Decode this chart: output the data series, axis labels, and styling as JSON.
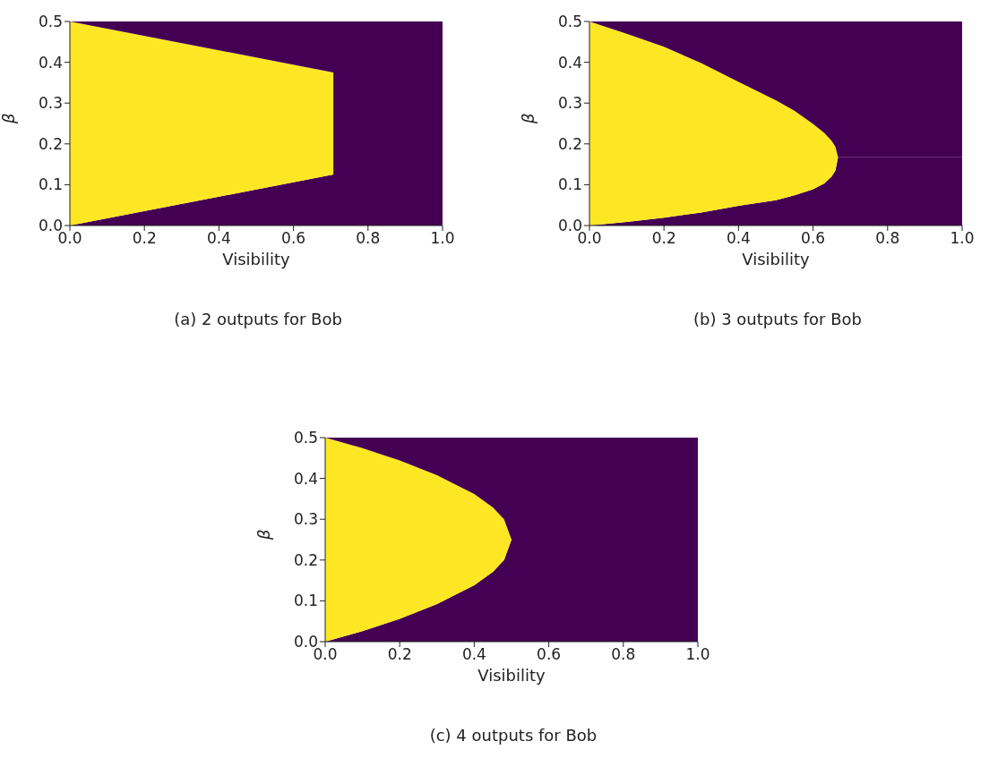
{
  "chart_data": [
    {
      "type": "area",
      "stacked": true,
      "title": "(a) 2 outputs for Bob",
      "xlabel": "Visibility",
      "ylabel": "β",
      "xlim": [
        0,
        1
      ],
      "ylim": [
        0,
        0.5
      ],
      "xticks": [
        {
          "value": 0,
          "label": "0.0"
        },
        {
          "value": 0.2,
          "label": "0.2"
        },
        {
          "value": 0.4,
          "label": "0.4"
        },
        {
          "value": 0.6,
          "label": "0.6"
        },
        {
          "value": 0.8,
          "label": "0.8"
        },
        {
          "value": 1,
          "label": "1.0"
        }
      ],
      "yticks": [
        {
          "value": 0,
          "label": "0.0"
        },
        {
          "value": 0.1,
          "label": "0.1"
        },
        {
          "value": 0.2,
          "label": "0.2"
        },
        {
          "value": 0.3,
          "label": "0.3"
        },
        {
          "value": 0.4,
          "label": "0.4"
        },
        {
          "value": 0.5,
          "label": "0.5"
        }
      ],
      "grid": false,
      "series": [
        {
          "color": "#440154",
          "x": [
            0,
            0.707,
            0.707,
            1
          ],
          "values": [
            0,
            0.125,
            0.125,
            0.125
          ]
        },
        {
          "color": "#fde725",
          "x": [
            0,
            0.707,
            0.707,
            1
          ],
          "values": [
            0.5,
            0.25,
            0,
            0
          ]
        },
        {
          "color": "#440154",
          "x": [
            0,
            0.707,
            0.707,
            1
          ],
          "values": [
            0,
            0.125,
            0.375,
            0.375
          ]
        }
      ]
    },
    {
      "type": "area",
      "stacked": true,
      "title": "(b) 3 outputs for Bob",
      "xlabel": "Visibility",
      "ylabel": "β",
      "xlim": [
        0,
        1
      ],
      "ylim": [
        0,
        0.5
      ],
      "xticks": [
        {
          "value": 0,
          "label": "0.0"
        },
        {
          "value": 0.2,
          "label": "0.2"
        },
        {
          "value": 0.4,
          "label": "0.4"
        },
        {
          "value": 0.6,
          "label": "0.6"
        },
        {
          "value": 0.8,
          "label": "0.8"
        },
        {
          "value": 1,
          "label": "1.0"
        }
      ],
      "yticks": [
        {
          "value": 0,
          "label": "0.0"
        },
        {
          "value": 0.1,
          "label": "0.1"
        },
        {
          "value": 0.2,
          "label": "0.2"
        },
        {
          "value": 0.3,
          "label": "0.3"
        },
        {
          "value": 0.4,
          "label": "0.4"
        },
        {
          "value": 0.5,
          "label": "0.5"
        }
      ],
      "grid": false,
      "series": [
        {
          "color": "#440154",
          "x": [
            0,
            0.1,
            0.2,
            0.3,
            0.4,
            0.5,
            0.55,
            0.6,
            0.63,
            0.65,
            0.66,
            0.667,
            1
          ],
          "values": [
            0,
            0.009,
            0.019,
            0.032,
            0.048,
            0.062,
            0.074,
            0.089,
            0.103,
            0.12,
            0.135,
            0.167,
            0.167
          ]
        },
        {
          "color": "#fde725",
          "x": [
            0,
            0.1,
            0.2,
            0.3,
            0.4,
            0.5,
            0.55,
            0.6,
            0.63,
            0.65,
            0.66,
            0.667,
            1
          ],
          "values": [
            0.5,
            0.461,
            0.419,
            0.366,
            0.304,
            0.245,
            0.207,
            0.16,
            0.124,
            0.087,
            0.058,
            0,
            0
          ]
        },
        {
          "color": "#440154",
          "x": [
            0,
            0.1,
            0.2,
            0.3,
            0.4,
            0.5,
            0.55,
            0.6,
            0.63,
            0.65,
            0.66,
            0.667,
            1
          ],
          "values": [
            0,
            0.03,
            0.062,
            0.102,
            0.148,
            0.193,
            0.219,
            0.251,
            0.273,
            0.293,
            0.307,
            0.333,
            0.333
          ]
        }
      ]
    },
    {
      "type": "area",
      "stacked": true,
      "title": "(c) 4 outputs for Bob",
      "xlabel": "Visibility",
      "ylabel": "β",
      "xlim": [
        0,
        1
      ],
      "ylim": [
        0,
        0.5
      ],
      "xticks": [
        {
          "value": 0,
          "label": "0.0"
        },
        {
          "value": 0.2,
          "label": "0.2"
        },
        {
          "value": 0.4,
          "label": "0.4"
        },
        {
          "value": 0.6,
          "label": "0.6"
        },
        {
          "value": 0.8,
          "label": "0.8"
        },
        {
          "value": 1,
          "label": "1.0"
        }
      ],
      "yticks": [
        {
          "value": 0,
          "label": "0.0"
        },
        {
          "value": 0.1,
          "label": "0.1"
        },
        {
          "value": 0.2,
          "label": "0.2"
        },
        {
          "value": 0.3,
          "label": "0.3"
        },
        {
          "value": 0.4,
          "label": "0.4"
        },
        {
          "value": 0.5,
          "label": "0.5"
        }
      ],
      "grid": false,
      "series": [
        {
          "color": "#440154",
          "x": [
            0,
            0.1,
            0.2,
            0.3,
            0.4,
            0.45,
            0.48,
            0.5,
            1
          ],
          "values": [
            0,
            0.026,
            0.056,
            0.092,
            0.138,
            0.171,
            0.2,
            0.25,
            0.25
          ]
        },
        {
          "color": "#fde725",
          "x": [
            0,
            0.1,
            0.2,
            0.3,
            0.4,
            0.45,
            0.48,
            0.5,
            1
          ],
          "values": [
            0.5,
            0.448,
            0.388,
            0.316,
            0.224,
            0.158,
            0.1,
            0,
            0
          ]
        },
        {
          "color": "#440154",
          "x": [
            0,
            0.1,
            0.2,
            0.3,
            0.4,
            0.45,
            0.48,
            0.5,
            1
          ],
          "values": [
            0,
            0.026,
            0.056,
            0.092,
            0.138,
            0.171,
            0.2,
            0.25,
            0.25
          ]
        }
      ]
    }
  ]
}
